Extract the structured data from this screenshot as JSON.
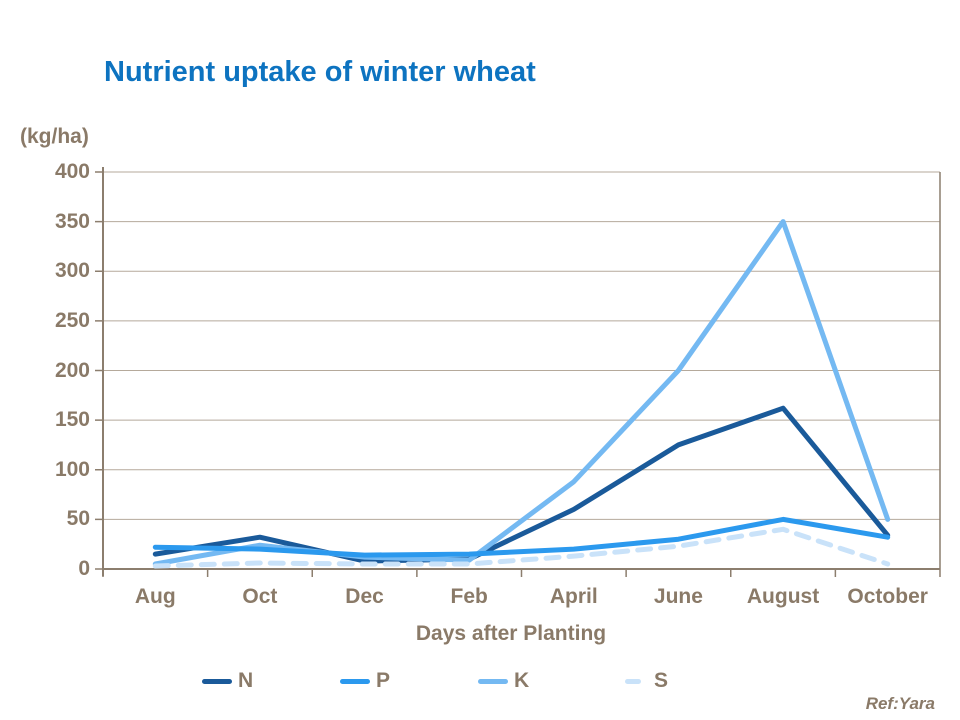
{
  "title": "Nutrient uptake of winter wheat",
  "ref": "Ref:Yara",
  "chart_data": {
    "type": "line",
    "title": "Nutrient uptake of winter wheat",
    "ylabel": "(kg/ha)",
    "xlabel": "Days after Planting",
    "ylim": [
      0,
      400
    ],
    "ytick_step": 50,
    "grid": true,
    "legend_position": "bottom",
    "categories": [
      "Aug",
      "Oct",
      "Dec",
      "Feb",
      "April",
      "June",
      "August",
      "October"
    ],
    "series": [
      {
        "name": "N",
        "color": "#1A5A9A",
        "style": "solid",
        "values": [
          15,
          32,
          8,
          10,
          60,
          125,
          162,
          34
        ]
      },
      {
        "name": "P",
        "color": "#2B99EE",
        "style": "solid",
        "values": [
          22,
          20,
          14,
          15,
          20,
          30,
          50,
          32
        ]
      },
      {
        "name": "K",
        "color": "#74B9F2",
        "style": "solid",
        "values": [
          5,
          24,
          12,
          9,
          88,
          200,
          350,
          50
        ]
      },
      {
        "name": "S",
        "color": "#C9E2F9",
        "style": "dashed",
        "values": [
          3,
          6,
          5,
          5,
          13,
          23,
          40,
          5
        ]
      }
    ],
    "colors": {
      "axis": "#8C7E6E",
      "grid": "#B5A99B",
      "text": "#8A7A68",
      "title": "#0D73C0"
    }
  }
}
